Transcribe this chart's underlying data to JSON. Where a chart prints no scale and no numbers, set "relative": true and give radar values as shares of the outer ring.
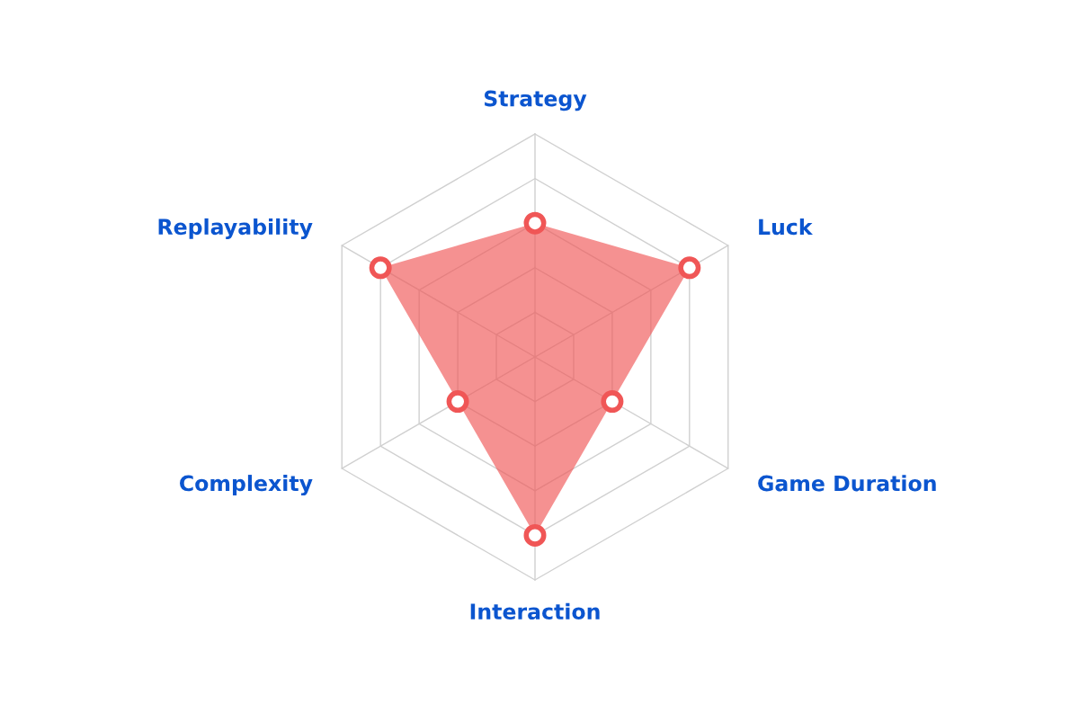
{
  "chart_data": {
    "type": "radar",
    "relative": true,
    "grid": true,
    "marker": "circle",
    "categories": [
      "Strategy",
      "Luck",
      "Game Duration",
      "Interaction",
      "Complexity",
      "Replayability"
    ],
    "series": [
      {
        "color": "#f05656",
        "values": [
          0.6,
          0.8,
          0.4,
          0.8,
          0.4,
          0.8
        ]
      }
    ]
  }
}
